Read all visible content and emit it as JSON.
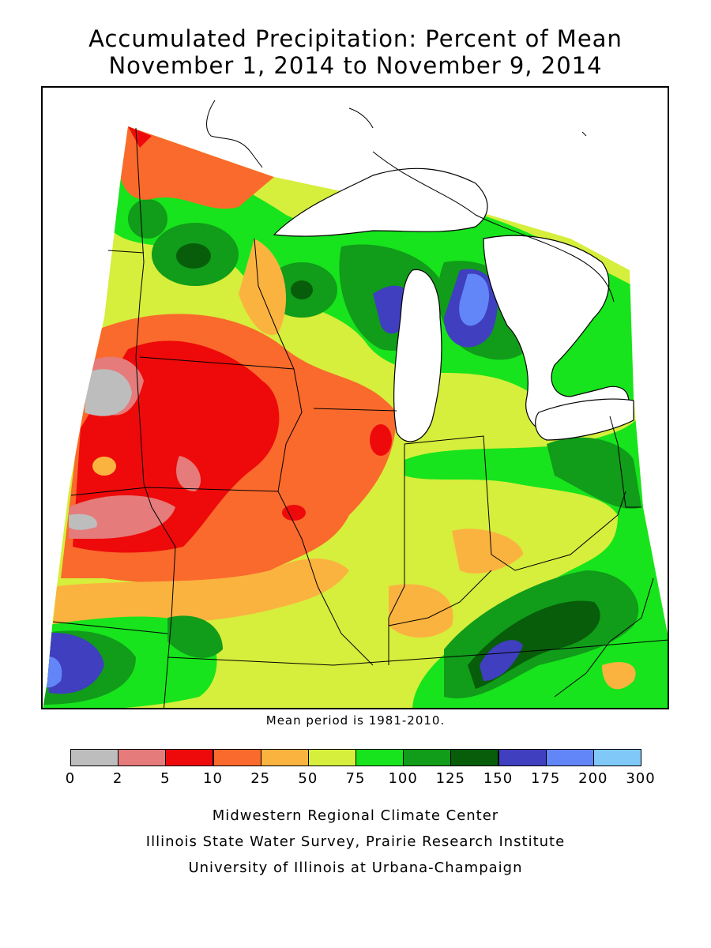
{
  "title": {
    "line1": "Accumulated Precipitation: Percent of Mean",
    "line2": "November 1, 2014 to November 9, 2014"
  },
  "mean_note": "Mean period is 1981-2010.",
  "legend": {
    "colors": [
      "#bdbdbd",
      "#e57b7b",
      "#ee0a0a",
      "#fa6a2c",
      "#fbb340",
      "#d6ee3c",
      "#17e41c",
      "#119c1a",
      "#075d09",
      "#3f3fbf",
      "#6286f7",
      "#80c8f8"
    ],
    "ticks": [
      "0",
      "2",
      "5",
      "10",
      "25",
      "50",
      "75",
      "100",
      "125",
      "150",
      "175",
      "200",
      "300"
    ]
  },
  "credits": [
    "Midwestern Regional Climate Center",
    "Illinois State Water Survey, Prairie Research Institute",
    "University of Illinois at Urbana-Champaign"
  ],
  "map": {
    "lake_color": "#ffffff",
    "boundary_color": "#000000",
    "region_hotspots": [
      {
        "name": "mn-nw-dry",
        "level": "25"
      },
      {
        "name": "dakota-dry",
        "level": "2"
      },
      {
        "name": "iowa-dry",
        "level": "10"
      },
      {
        "name": "wisconsin-wet",
        "level": "150"
      },
      {
        "name": "michigan-wet",
        "level": "175"
      },
      {
        "name": "kentucky-wet",
        "level": "175"
      },
      {
        "name": "kansas-wet",
        "level": "175"
      }
    ]
  }
}
